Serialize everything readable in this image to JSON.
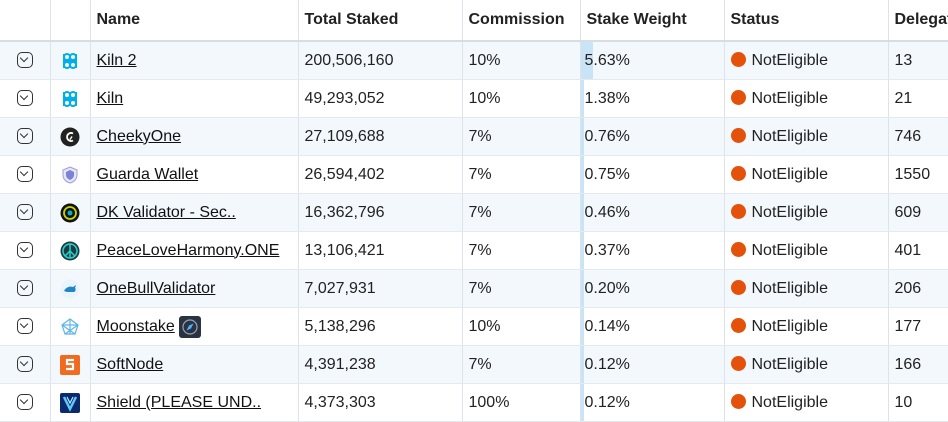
{
  "table": {
    "headers": {
      "name": "Name",
      "total_staked": "Total Staked",
      "commission": "Commission",
      "stake_weight": "Stake Weight",
      "status": "Status",
      "delegators": "Delegat"
    },
    "rows": [
      {
        "name": "Kiln 2",
        "total_staked": "200,506,160",
        "commission": "10%",
        "stake_weight": "5.63%",
        "weight_value": 5.63,
        "status": "NotEligible",
        "delegators": "13",
        "logo": "harmony-icon"
      },
      {
        "name": "Kiln",
        "total_staked": "49,293,052",
        "commission": "10%",
        "stake_weight": "1.38%",
        "weight_value": 1.38,
        "status": "NotEligible",
        "delegators": "21",
        "logo": "harmony-icon"
      },
      {
        "name": "CheekyOne",
        "total_staked": "27,109,688",
        "commission": "7%",
        "stake_weight": "0.76%",
        "weight_value": 0.76,
        "status": "NotEligible",
        "delegators": "746",
        "logo": "cheeky-icon"
      },
      {
        "name": "Guarda Wallet",
        "total_staked": "26,594,402",
        "commission": "7%",
        "stake_weight": "0.75%",
        "weight_value": 0.75,
        "status": "NotEligible",
        "delegators": "1550",
        "logo": "shield-icon"
      },
      {
        "name": "DK Validator - Sec..",
        "total_staked": "16,362,796",
        "commission": "7%",
        "stake_weight": "0.46%",
        "weight_value": 0.46,
        "status": "NotEligible",
        "delegators": "609",
        "logo": "dk-icon"
      },
      {
        "name": "PeaceLoveHarmony.ONE",
        "total_staked": "13,106,421",
        "commission": "7%",
        "stake_weight": "0.37%",
        "weight_value": 0.37,
        "status": "NotEligible",
        "delegators": "401",
        "logo": "peace-icon"
      },
      {
        "name": "OneBullValidator",
        "total_staked": "7,027,931",
        "commission": "7%",
        "stake_weight": "0.20%",
        "weight_value": 0.2,
        "status": "NotEligible",
        "delegators": "206",
        "logo": "bull-icon"
      },
      {
        "name": "Moonstake",
        "total_staked": "5,138,296",
        "commission": "10%",
        "stake_weight": "0.14%",
        "weight_value": 0.14,
        "status": "NotEligible",
        "delegators": "177",
        "logo": "moonstake-icon",
        "badge": "compass-icon"
      },
      {
        "name": "SoftNode",
        "total_staked": "4,391,238",
        "commission": "7%",
        "stake_weight": "0.12%",
        "weight_value": 0.12,
        "status": "NotEligible",
        "delegators": "166",
        "logo": "softnode-icon"
      },
      {
        "name": "Shield (PLEASE UND..",
        "total_staked": "4,373,303",
        "commission": "100%",
        "stake_weight": "0.12%",
        "weight_value": 0.12,
        "status": "NotEligible",
        "delegators": "10",
        "logo": "shield-blue-icon"
      }
    ]
  },
  "colors": {
    "status_dot": "#e4510b",
    "weight_bar": "#c9e3f7",
    "row_alt": "#f3f8fc",
    "harmony": "#00aee9"
  }
}
